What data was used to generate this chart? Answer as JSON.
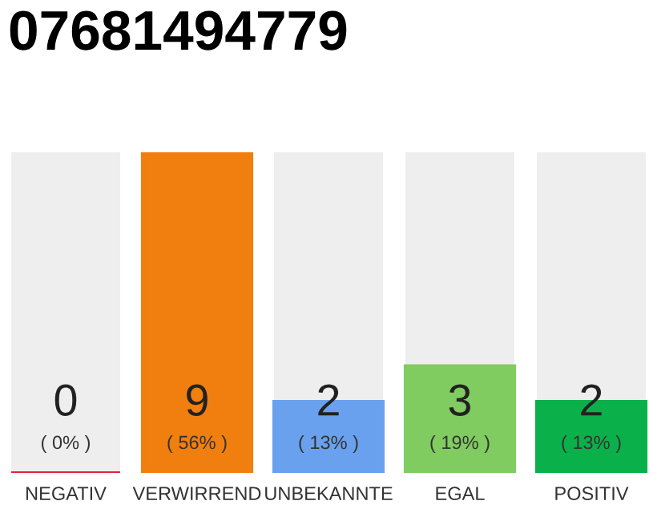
{
  "chart_data": {
    "type": "bar",
    "title": "07681494779",
    "categories": [
      "NEGATIV",
      "VERWIRREND",
      "UNBEKANNTE",
      "EGAL",
      "POSITIV"
    ],
    "values": [
      0,
      9,
      2,
      3,
      2
    ],
    "colors": [
      "#e8213f",
      "#f07f0f",
      "#6aa1ee",
      "#80cc60",
      "#0ab14a"
    ],
    "ylim": [
      0,
      9
    ],
    "data_labels": true,
    "annotations": [
      "( 0% )",
      "( 56% )",
      "( 13% )",
      "( 19% )",
      "( 13% )"
    ],
    "tick_labels": "x",
    "grid": false,
    "legend": false
  }
}
